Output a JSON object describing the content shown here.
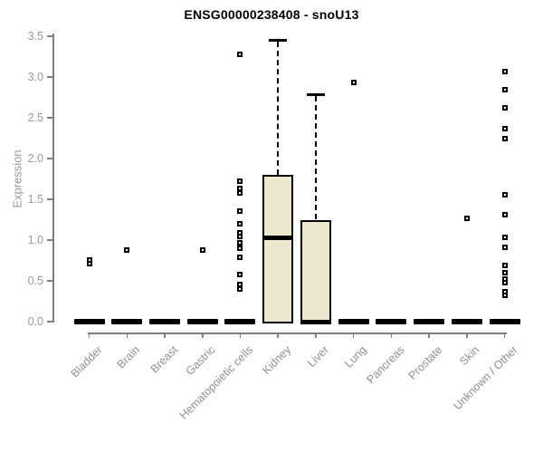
{
  "title": "ENSG00000238408 - snoU13",
  "chart_data": {
    "type": "boxplot",
    "title": "ENSG00000238408 - snoU13",
    "xlabel": "",
    "ylabel": "Expression",
    "ylim": [
      0,
      3.5
    ],
    "yticks": [
      "0.0",
      "0.5",
      "1.0",
      "1.5",
      "2.0",
      "2.5",
      "3.0",
      "3.5"
    ],
    "grid": "off",
    "legend": "none",
    "box_fill_color": "#ece7cd",
    "box_border_color": "#000000",
    "axis_color": "#7f7f7f",
    "tick_label_color": "#9a9a9a",
    "categories": [
      "Bladder",
      "Brain",
      "Breast",
      "Gastric",
      "Hematopoietic cells",
      "Kidney",
      "Liver",
      "Lung",
      "Pancreas",
      "Prostate",
      "Skin",
      "Unknown / Other"
    ],
    "boxes": [
      {
        "category": "Bladder",
        "q1": 0,
        "median": 0,
        "q3": 0,
        "whisker_low": 0,
        "whisker_high": 0,
        "outliers": [
          0.76,
          0.71
        ]
      },
      {
        "category": "Brain",
        "q1": 0,
        "median": 0,
        "q3": 0,
        "whisker_low": 0,
        "whisker_high": 0,
        "outliers": [
          0.88
        ]
      },
      {
        "category": "Breast",
        "q1": 0,
        "median": 0,
        "q3": 0,
        "whisker_low": 0,
        "whisker_high": 0,
        "outliers": []
      },
      {
        "category": "Gastric",
        "q1": 0,
        "median": 0,
        "q3": 0,
        "whisker_low": 0,
        "whisker_high": 0,
        "outliers": [
          0.88
        ]
      },
      {
        "category": "Hematopoietic cells",
        "q1": 0,
        "median": 0,
        "q3": 0,
        "whisker_low": 0,
        "whisker_high": 0,
        "outliers": [
          3.28,
          1.72,
          1.63,
          1.58,
          1.36,
          1.2,
          1.09,
          1.05,
          0.97,
          0.9,
          0.79,
          0.58,
          0.46,
          0.4
        ]
      },
      {
        "category": "Kidney",
        "q1": 0,
        "median": 1.03,
        "q3": 1.8,
        "whisker_low": 0,
        "whisker_high": 3.46,
        "outliers": []
      },
      {
        "category": "Liver",
        "q1": 0,
        "median": 0,
        "q3": 1.25,
        "whisker_low": 0,
        "whisker_high": 2.79,
        "outliers": []
      },
      {
        "category": "Lung",
        "q1": 0,
        "median": 0,
        "q3": 0,
        "whisker_low": 0,
        "whisker_high": 0,
        "outliers": [
          2.93
        ]
      },
      {
        "category": "Pancreas",
        "q1": 0,
        "median": 0,
        "q3": 0,
        "whisker_low": 0,
        "whisker_high": 0,
        "outliers": []
      },
      {
        "category": "Prostate",
        "q1": 0,
        "median": 0,
        "q3": 0,
        "whisker_low": 0,
        "whisker_high": 0,
        "outliers": []
      },
      {
        "category": "Skin",
        "q1": 0,
        "median": 0,
        "q3": 0,
        "whisker_low": 0,
        "whisker_high": 0,
        "outliers": [
          1.27
        ]
      },
      {
        "category": "Unknown / Other",
        "q1": 0,
        "median": 0,
        "q3": 0,
        "whisker_low": 0,
        "whisker_high": 0,
        "outliers": [
          3.07,
          2.85,
          2.62,
          2.37,
          2.25,
          1.56,
          1.31,
          1.03,
          0.91,
          0.69,
          0.6,
          0.52,
          0.48,
          0.37,
          0.32
        ]
      }
    ]
  }
}
